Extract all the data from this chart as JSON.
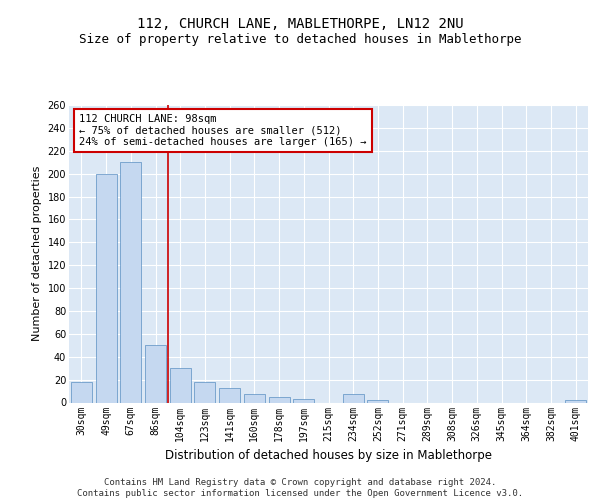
{
  "title": "112, CHURCH LANE, MABLETHORPE, LN12 2NU",
  "subtitle": "Size of property relative to detached houses in Mablethorpe",
  "xlabel": "Distribution of detached houses by size in Mablethorpe",
  "ylabel": "Number of detached properties",
  "categories": [
    "30sqm",
    "49sqm",
    "67sqm",
    "86sqm",
    "104sqm",
    "123sqm",
    "141sqm",
    "160sqm",
    "178sqm",
    "197sqm",
    "215sqm",
    "234sqm",
    "252sqm",
    "271sqm",
    "289sqm",
    "308sqm",
    "326sqm",
    "345sqm",
    "364sqm",
    "382sqm",
    "401sqm"
  ],
  "values": [
    18,
    200,
    210,
    50,
    30,
    18,
    13,
    7,
    5,
    3,
    0,
    7,
    2,
    0,
    0,
    0,
    0,
    0,
    0,
    0,
    2
  ],
  "bar_color": "#c5d8f0",
  "bar_edge_color": "#5a8fc2",
  "vline_color": "#cc0000",
  "vline_x": 3.5,
  "annotation_box_text": "112 CHURCH LANE: 98sqm\n← 75% of detached houses are smaller (512)\n24% of semi-detached houses are larger (165) →",
  "annotation_box_color": "#cc0000",
  "annotation_box_fill": "#ffffff",
  "ylim": [
    0,
    260
  ],
  "yticks": [
    0,
    20,
    40,
    60,
    80,
    100,
    120,
    140,
    160,
    180,
    200,
    220,
    240,
    260
  ],
  "background_color": "#dce8f5",
  "grid_color": "#ffffff",
  "footer_text": "Contains HM Land Registry data © Crown copyright and database right 2024.\nContains public sector information licensed under the Open Government Licence v3.0.",
  "title_fontsize": 10,
  "subtitle_fontsize": 9,
  "xlabel_fontsize": 8.5,
  "ylabel_fontsize": 8,
  "tick_fontsize": 7,
  "annotation_fontsize": 7.5,
  "footer_fontsize": 6.5
}
